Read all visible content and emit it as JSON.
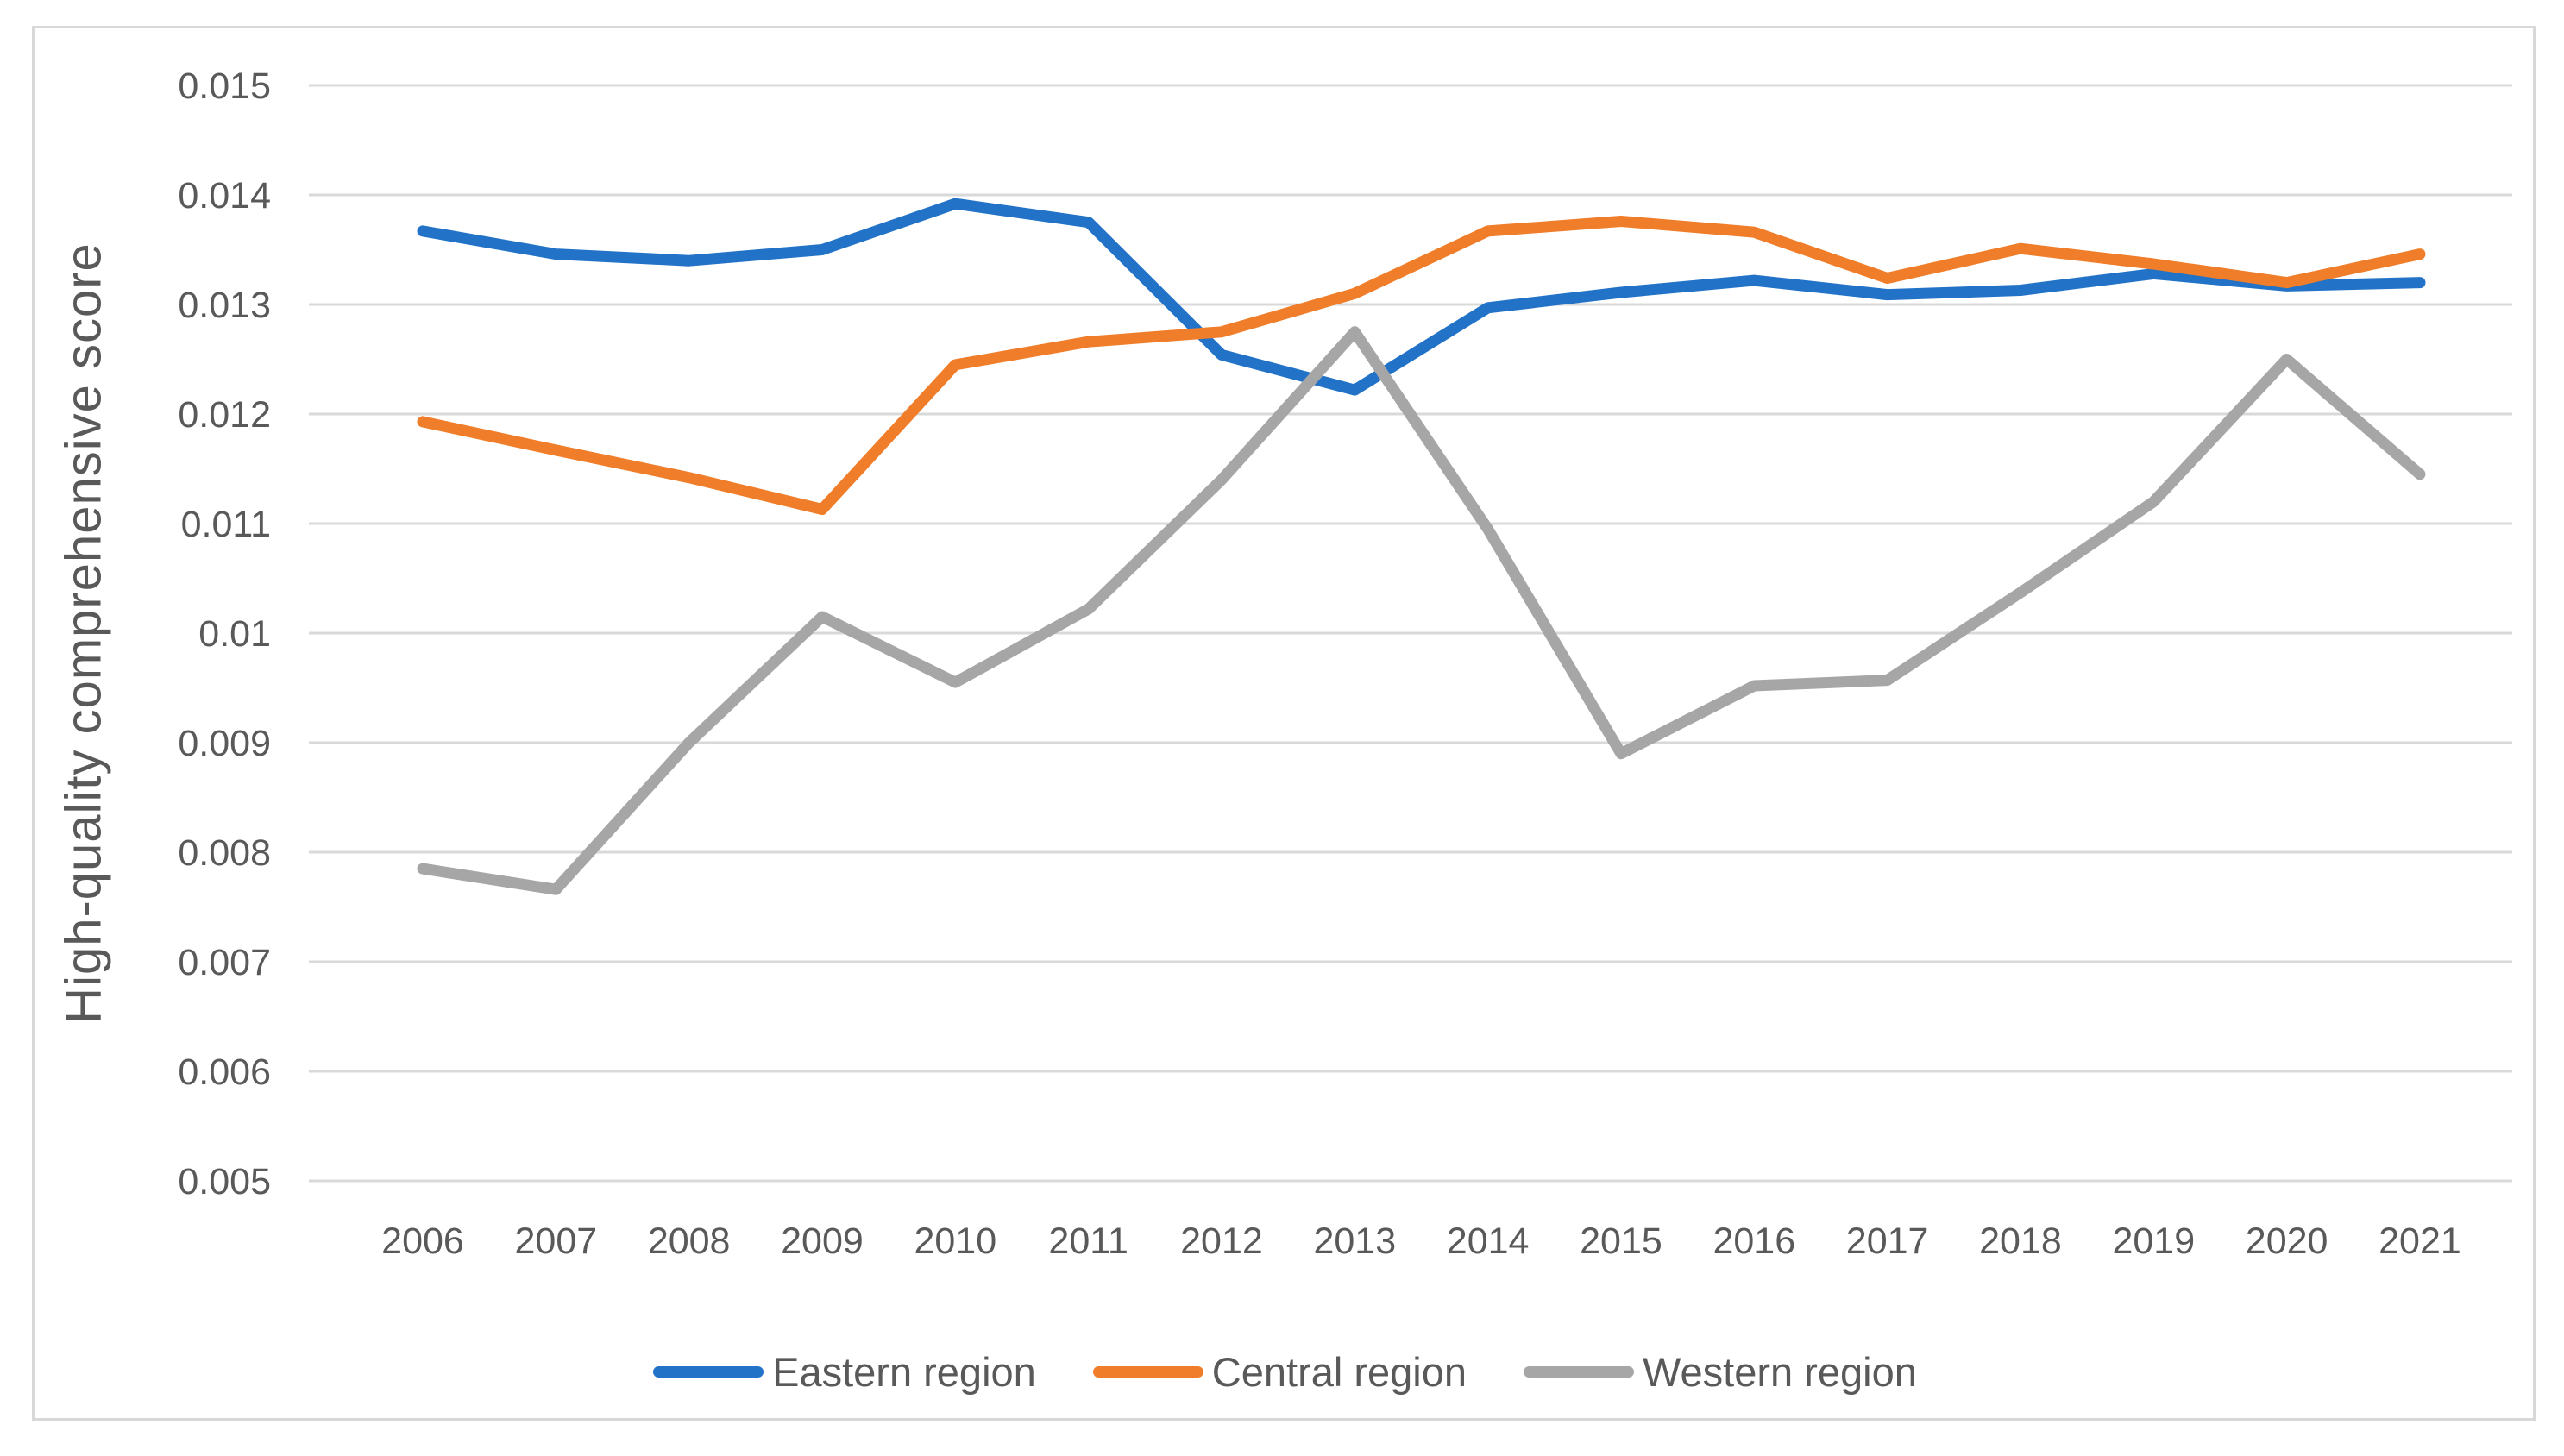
{
  "colors": {
    "background": "#ffffff",
    "frame_border": "#d8d8d8",
    "gridline": "#d9d9d9",
    "axis_text": "#595959",
    "series_blue": "#2273c7",
    "series_orange": "#f07d29",
    "series_gray": "#a6a6a6"
  },
  "chart_data": {
    "type": "line",
    "title": "",
    "xlabel": "",
    "ylabel": "High-quality comprehensive score",
    "x_categories": [
      "2006",
      "2007",
      "2008",
      "2009",
      "2010",
      "2011",
      "2012",
      "2013",
      "2014",
      "2015",
      "2016",
      "2017",
      "2018",
      "2019",
      "2020",
      "2021"
    ],
    "y_ticks": [
      {
        "label": "0.015",
        "value": 0.015
      },
      {
        "label": "0.014",
        "value": 0.014
      },
      {
        "label": "0.013",
        "value": 0.013
      },
      {
        "label": "0.012",
        "value": 0.012
      },
      {
        "label": "0.011",
        "value": 0.011
      },
      {
        "label": "0.01",
        "value": 0.01
      },
      {
        "label": "0.009",
        "value": 0.009
      },
      {
        "label": "0.008",
        "value": 0.008
      },
      {
        "label": "0.007",
        "value": 0.007
      },
      {
        "label": "0.006",
        "value": 0.006
      },
      {
        "label": "0.005",
        "value": 0.005
      }
    ],
    "ylim": [
      0.005,
      0.015
    ],
    "grid": true,
    "legend_position": "bottom",
    "series": [
      {
        "name": "Eastern region",
        "color": "#2273c7",
        "values": [
          0.01367,
          0.01346,
          0.0134,
          0.0135,
          0.01392,
          0.01375,
          0.01254,
          0.01222,
          0.01297,
          0.01311,
          0.01322,
          0.01309,
          0.01313,
          0.01328,
          0.01317,
          0.0132
        ]
      },
      {
        "name": "Central region",
        "color": "#f07d29",
        "values": [
          0.01193,
          0.01167,
          0.01142,
          0.01113,
          0.01245,
          0.01266,
          0.01275,
          0.0131,
          0.01367,
          0.01376,
          0.01366,
          0.01324,
          0.01351,
          0.01337,
          0.0132,
          0.01346
        ]
      },
      {
        "name": "Western region",
        "color": "#a6a6a6",
        "values": [
          0.00785,
          0.00766,
          0.009,
          0.01015,
          0.00955,
          0.01022,
          0.0114,
          0.01275,
          0.01095,
          0.0089,
          0.00952,
          0.00957,
          0.01037,
          0.0112,
          0.0125,
          0.01145
        ]
      }
    ]
  }
}
